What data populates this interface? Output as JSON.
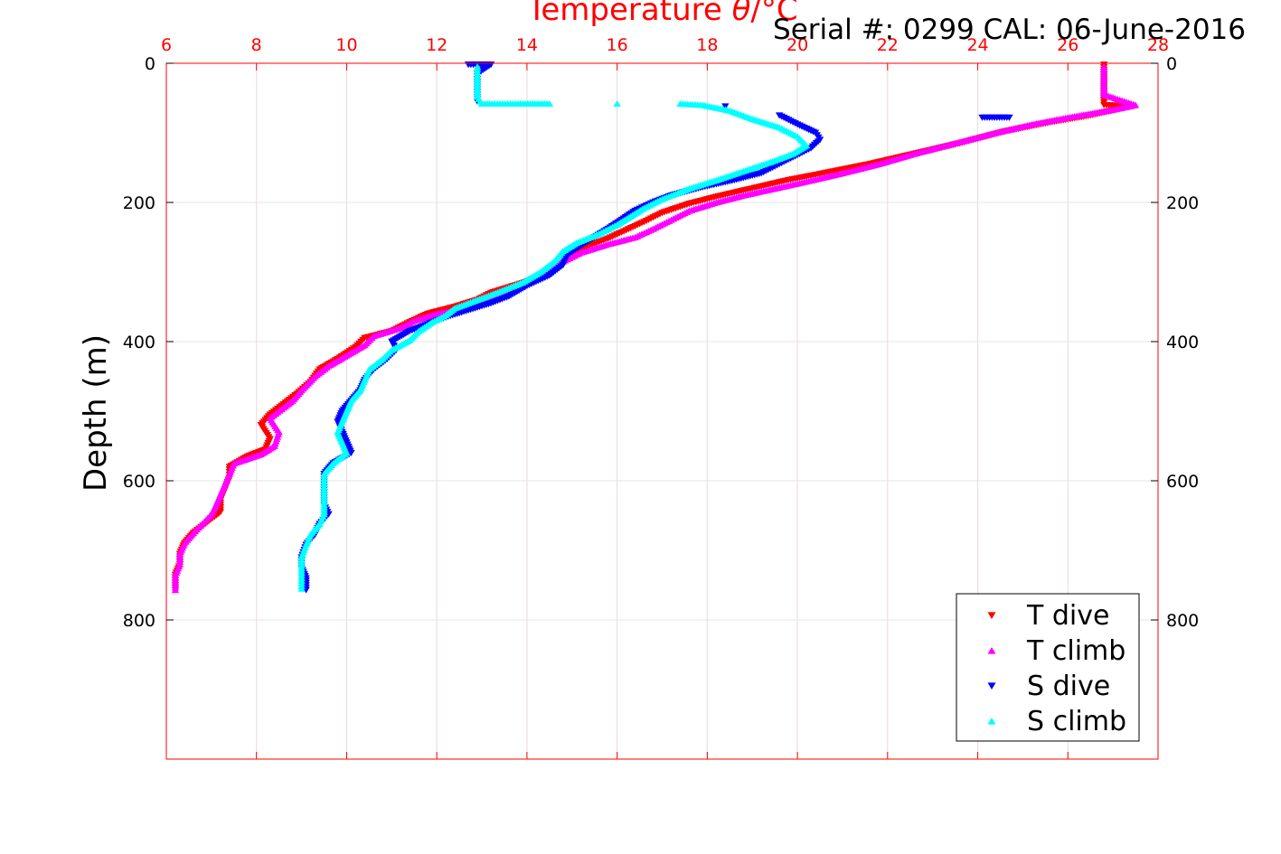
{
  "chart_data": {
    "type": "scatter",
    "title": "",
    "xlabel_prefix": "Temperature ",
    "xlabel_symbol": "θ",
    "xlabel_unit": "/°C",
    "ylabel": "Depth (m)",
    "annotation": "Serial #: 0299 CAL: 06-June-2016",
    "xlim": [
      6,
      28
    ],
    "ylim": [
      0,
      1000
    ],
    "y_reversed": true,
    "x_axis_position": "top",
    "y_axis_both_sides": true,
    "grid": true,
    "legend_position": "bottom-right",
    "xticks": [
      "6",
      "8",
      "10",
      "12",
      "14",
      "16",
      "18",
      "20",
      "22",
      "24",
      "26",
      "28"
    ],
    "yticks_left": [
      "0",
      "200",
      "400",
      "600",
      "800"
    ],
    "yticks_right": [
      "0",
      "200",
      "400",
      "600",
      "800"
    ],
    "colors": {
      "axis": "#ff0000",
      "grid": "#e8d8dc"
    },
    "series": [
      {
        "name": "T dive",
        "color": "#ff0000",
        "marker": "triangle-down",
        "points": [
          [
            26.8,
            2
          ],
          [
            26.8,
            20
          ],
          [
            26.8,
            40
          ],
          [
            26.8,
            60
          ],
          [
            27.4,
            62
          ],
          [
            26.5,
            75
          ],
          [
            25.6,
            85
          ],
          [
            24.6,
            98
          ],
          [
            23.6,
            115
          ],
          [
            22.6,
            130
          ],
          [
            21.6,
            145
          ],
          [
            20.6,
            158
          ],
          [
            19.8,
            168
          ],
          [
            19.0,
            180
          ],
          [
            18.2,
            192
          ],
          [
            17.6,
            202
          ],
          [
            17.0,
            215
          ],
          [
            16.6,
            228
          ],
          [
            16.2,
            240
          ],
          [
            15.8,
            252
          ],
          [
            15.4,
            262
          ],
          [
            15.0,
            275
          ],
          [
            14.7,
            292
          ],
          [
            14.4,
            305
          ],
          [
            13.8,
            318
          ],
          [
            13.2,
            330
          ],
          [
            12.9,
            340
          ],
          [
            12.4,
            350
          ],
          [
            11.8,
            360
          ],
          [
            11.4,
            372
          ],
          [
            11.0,
            385
          ],
          [
            10.4,
            395
          ],
          [
            10.2,
            408
          ],
          [
            9.8,
            425
          ],
          [
            9.4,
            440
          ],
          [
            9.2,
            458
          ],
          [
            8.9,
            475
          ],
          [
            8.6,
            490
          ],
          [
            8.3,
            505
          ],
          [
            8.1,
            520
          ],
          [
            8.3,
            540
          ],
          [
            8.2,
            555
          ],
          [
            7.8,
            565
          ],
          [
            7.4,
            580
          ],
          [
            7.4,
            595
          ],
          [
            7.3,
            612
          ],
          [
            7.2,
            628
          ],
          [
            7.2,
            645
          ],
          [
            6.9,
            660
          ],
          [
            6.6,
            675
          ],
          [
            6.4,
            690
          ],
          [
            6.3,
            705
          ],
          [
            6.3,
            720
          ],
          [
            6.2,
            735
          ],
          [
            6.2,
            750
          ],
          [
            6.2,
            757
          ]
        ]
      },
      {
        "name": "T climb",
        "color": "#ff00ff",
        "marker": "triangle-up",
        "points": [
          [
            26.8,
            5
          ],
          [
            26.8,
            25
          ],
          [
            26.8,
            45
          ],
          [
            27.5,
            60
          ],
          [
            26.9,
            68
          ],
          [
            26.0,
            78
          ],
          [
            25.2,
            88
          ],
          [
            24.4,
            100
          ],
          [
            23.5,
            115
          ],
          [
            22.6,
            130
          ],
          [
            21.8,
            145
          ],
          [
            21.0,
            158
          ],
          [
            20.2,
            170
          ],
          [
            19.5,
            180
          ],
          [
            18.8,
            190
          ],
          [
            18.2,
            200
          ],
          [
            17.6,
            212
          ],
          [
            17.2,
            225
          ],
          [
            16.8,
            238
          ],
          [
            16.4,
            250
          ],
          [
            15.8,
            260
          ],
          [
            15.2,
            272
          ],
          [
            14.8,
            285
          ],
          [
            14.4,
            300
          ],
          [
            13.9,
            315
          ],
          [
            13.4,
            330
          ],
          [
            13.1,
            342
          ],
          [
            12.6,
            352
          ],
          [
            12.0,
            360
          ],
          [
            11.5,
            370
          ],
          [
            11.2,
            380
          ],
          [
            10.6,
            392
          ],
          [
            10.4,
            405
          ],
          [
            10.0,
            420
          ],
          [
            9.6,
            435
          ],
          [
            9.3,
            450
          ],
          [
            9.0,
            470
          ],
          [
            8.8,
            485
          ],
          [
            8.6,
            495
          ],
          [
            8.3,
            510
          ],
          [
            8.5,
            530
          ],
          [
            8.4,
            550
          ],
          [
            8.1,
            562
          ],
          [
            7.5,
            575
          ],
          [
            7.4,
            590
          ],
          [
            7.3,
            605
          ],
          [
            7.2,
            620
          ],
          [
            7.1,
            635
          ],
          [
            7.0,
            648
          ],
          [
            6.8,
            662
          ],
          [
            6.6,
            675
          ],
          [
            6.4,
            690
          ],
          [
            6.3,
            705
          ],
          [
            6.3,
            720
          ],
          [
            6.2,
            735
          ],
          [
            6.2,
            750
          ],
          [
            6.2,
            757
          ]
        ]
      },
      {
        "name": "S dive",
        "color": "#0000ff",
        "marker": "triangle-down",
        "points": [
          [
            12.7,
            2
          ],
          [
            13.2,
            2
          ],
          [
            12.9,
            15
          ],
          [
            12.9,
            30
          ],
          [
            12.9,
            45
          ],
          [
            12.9,
            55
          ],
          [
            24.1,
            78
          ],
          [
            24.7,
            78
          ],
          [
            18.4,
            62
          ],
          [
            19.6,
            75
          ],
          [
            20.0,
            88
          ],
          [
            20.4,
            100
          ],
          [
            20.5,
            110
          ],
          [
            20.3,
            122
          ],
          [
            20.0,
            132
          ],
          [
            19.6,
            145
          ],
          [
            19.2,
            158
          ],
          [
            18.6,
            168
          ],
          [
            17.9,
            178
          ],
          [
            17.2,
            190
          ],
          [
            16.8,
            200
          ],
          [
            16.4,
            212
          ],
          [
            16.1,
            225
          ],
          [
            15.8,
            238
          ],
          [
            15.5,
            250
          ],
          [
            15.2,
            262
          ],
          [
            14.9,
            275
          ],
          [
            14.8,
            290
          ],
          [
            14.5,
            305
          ],
          [
            14.0,
            320
          ],
          [
            13.6,
            335
          ],
          [
            13.2,
            345
          ],
          [
            12.7,
            355
          ],
          [
            12.2,
            365
          ],
          [
            11.8,
            375
          ],
          [
            11.4,
            385
          ],
          [
            11.0,
            400
          ],
          [
            11.1,
            412
          ],
          [
            10.9,
            425
          ],
          [
            10.6,
            440
          ],
          [
            10.4,
            455
          ],
          [
            10.3,
            470
          ],
          [
            10.1,
            485
          ],
          [
            9.9,
            500
          ],
          [
            9.8,
            515
          ],
          [
            9.9,
            530
          ],
          [
            10.0,
            545
          ],
          [
            10.1,
            560
          ],
          [
            9.7,
            575
          ],
          [
            9.5,
            590
          ],
          [
            9.5,
            605
          ],
          [
            9.5,
            620
          ],
          [
            9.5,
            635
          ],
          [
            9.6,
            648
          ],
          [
            9.4,
            662
          ],
          [
            9.3,
            677
          ],
          [
            9.1,
            692
          ],
          [
            9.0,
            710
          ],
          [
            9.0,
            725
          ],
          [
            9.1,
            740
          ],
          [
            9.1,
            757
          ]
        ]
      },
      {
        "name": "S climb",
        "color": "#00ffff",
        "marker": "triangle-up",
        "points": [
          [
            12.9,
            5
          ],
          [
            12.9,
            20
          ],
          [
            12.9,
            35
          ],
          [
            12.9,
            48
          ],
          [
            13.0,
            58
          ],
          [
            13.4,
            58
          ],
          [
            13.8,
            58
          ],
          [
            14.5,
            58
          ],
          [
            16.0,
            58
          ],
          [
            17.4,
            58
          ],
          [
            17.9,
            60
          ],
          [
            18.5,
            68
          ],
          [
            19.0,
            80
          ],
          [
            19.6,
            92
          ],
          [
            20.0,
            105
          ],
          [
            20.2,
            118
          ],
          [
            19.9,
            130
          ],
          [
            19.4,
            142
          ],
          [
            18.8,
            155
          ],
          [
            18.2,
            168
          ],
          [
            17.6,
            180
          ],
          [
            17.0,
            195
          ],
          [
            16.6,
            208
          ],
          [
            16.3,
            220
          ],
          [
            16.0,
            232
          ],
          [
            15.6,
            245
          ],
          [
            15.1,
            258
          ],
          [
            14.8,
            270
          ],
          [
            14.6,
            285
          ],
          [
            14.3,
            300
          ],
          [
            13.9,
            315
          ],
          [
            13.4,
            328
          ],
          [
            12.9,
            340
          ],
          [
            12.4,
            352
          ],
          [
            12.2,
            362
          ],
          [
            11.9,
            372
          ],
          [
            11.6,
            385
          ],
          [
            11.4,
            398
          ],
          [
            11.0,
            412
          ],
          [
            10.8,
            425
          ],
          [
            10.5,
            440
          ],
          [
            10.4,
            455
          ],
          [
            10.3,
            470
          ],
          [
            10.1,
            485
          ],
          [
            10.0,
            500
          ],
          [
            9.9,
            515
          ],
          [
            9.8,
            530
          ],
          [
            9.9,
            545
          ],
          [
            10.0,
            560
          ],
          [
            9.7,
            575
          ],
          [
            9.5,
            590
          ],
          [
            9.5,
            605
          ],
          [
            9.5,
            620
          ],
          [
            9.5,
            635
          ],
          [
            9.5,
            648
          ],
          [
            9.4,
            662
          ],
          [
            9.2,
            677
          ],
          [
            9.1,
            692
          ],
          [
            9.0,
            710
          ],
          [
            9.0,
            725
          ],
          [
            9.0,
            740
          ],
          [
            9.0,
            755
          ]
        ]
      }
    ]
  }
}
